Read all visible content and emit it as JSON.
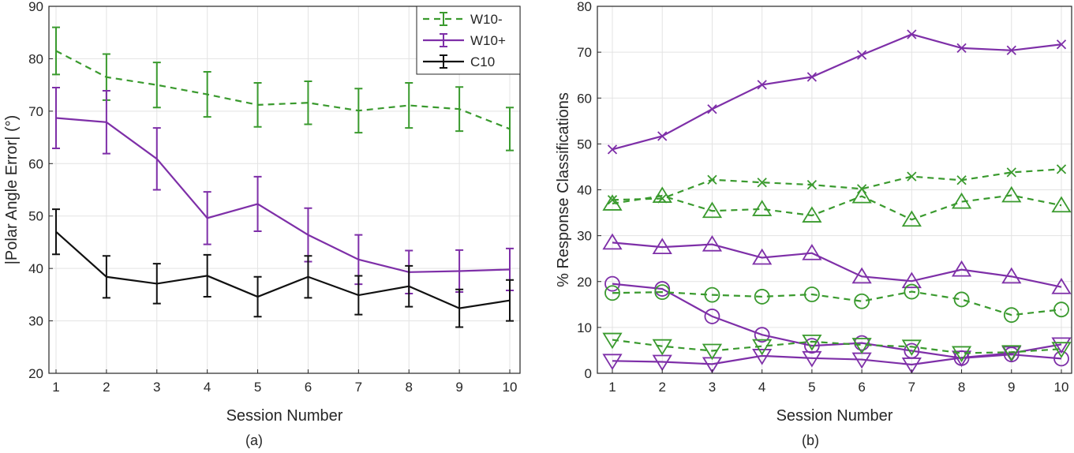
{
  "chart_data": [
    {
      "panel_label": "(a)",
      "type": "line",
      "xlabel": "Session Number",
      "ylabel": "|Polar Angle Error| (°)",
      "xlim": [
        1,
        10
      ],
      "ylim": [
        20,
        90
      ],
      "xticks": [
        1,
        2,
        3,
        4,
        5,
        6,
        7,
        8,
        9,
        10
      ],
      "yticks": [
        20,
        30,
        40,
        50,
        60,
        70,
        80,
        90
      ],
      "grid": true,
      "legend_position": "top-right",
      "x": [
        1,
        2,
        3,
        4,
        5,
        6,
        7,
        8,
        9,
        10
      ],
      "series": [
        {
          "name": "W10-",
          "color": "#3a9a2e",
          "dash": true,
          "values": [
            81.5,
            76.5,
            75,
            73.2,
            71.2,
            71.6,
            70.1,
            71.1,
            70.4,
            66.6
          ],
          "err": [
            4.5,
            4.4,
            4.3,
            4.3,
            4.2,
            4.1,
            4.2,
            4.3,
            4.2,
            4.1
          ]
        },
        {
          "name": "W10+",
          "color": "#7e2fa8",
          "dash": false,
          "values": [
            68.7,
            67.9,
            60.9,
            49.6,
            52.3,
            46.4,
            41.7,
            39.3,
            39.5,
            39.8
          ],
          "err": [
            5.8,
            6.0,
            5.9,
            5.0,
            5.2,
            5.1,
            4.7,
            4.1,
            4.0,
            4.0
          ]
        },
        {
          "name": "C10",
          "color": "#111111",
          "dash": false,
          "values": [
            47,
            38.4,
            37.1,
            38.6,
            34.6,
            38.4,
            34.9,
            36.6,
            32.4,
            33.9
          ],
          "err": [
            4.3,
            4.0,
            3.8,
            4.0,
            3.8,
            4.0,
            3.7,
            3.9,
            3.6,
            3.9
          ]
        }
      ]
    },
    {
      "panel_label": "(b)",
      "type": "line",
      "xlabel": "Session Number",
      "ylabel": "% Response Classifications",
      "xlim": [
        1,
        10
      ],
      "ylim": [
        0,
        80
      ],
      "xticks": [
        1,
        2,
        3,
        4,
        5,
        6,
        7,
        8,
        9,
        10
      ],
      "yticks": [
        0,
        10,
        20,
        30,
        40,
        50,
        60,
        70,
        80
      ],
      "grid": true,
      "x": [
        1,
        2,
        3,
        4,
        5,
        6,
        7,
        8,
        9,
        10
      ],
      "series": [
        {
          "marker": "x",
          "color": "#7e2fa8",
          "dash": false,
          "values": [
            48.8,
            51.7,
            57.6,
            62.9,
            64.6,
            69.4,
            73.9,
            70.9,
            70.4,
            71.7
          ]
        },
        {
          "marker": "triangle-up",
          "color": "#7e2fa8",
          "dash": false,
          "values": [
            28.5,
            27.5,
            28.1,
            25.2,
            26.2,
            21.1,
            20.1,
            22.6,
            21.1,
            18.8
          ]
        },
        {
          "marker": "circle",
          "color": "#7e2fa8",
          "dash": false,
          "values": [
            19.5,
            18.4,
            12.4,
            8.4,
            6,
            6.6,
            4.9,
            3.3,
            4.1,
            3.2
          ]
        },
        {
          "marker": "triangle-down",
          "color": "#7e2fa8",
          "dash": false,
          "values": [
            2.7,
            2.5,
            2,
            3.8,
            3.3,
            3,
            1.9,
            3.4,
            4.4,
            6.3
          ]
        },
        {
          "marker": "x",
          "color": "#3a9a2e",
          "dash": true,
          "values": [
            37.8,
            38.1,
            42.2,
            41.6,
            41.1,
            40.2,
            42.9,
            42.1,
            43.8,
            44.5
          ]
        },
        {
          "marker": "triangle-up",
          "color": "#3a9a2e",
          "dash": true,
          "values": [
            37,
            38.7,
            35.4,
            35.8,
            34.4,
            38.6,
            33.5,
            37.4,
            38.8,
            36.6
          ]
        },
        {
          "marker": "circle",
          "color": "#3a9a2e",
          "dash": true,
          "values": [
            17.5,
            17.7,
            17.1,
            16.7,
            17.2,
            15.7,
            17.8,
            16.1,
            12.7,
            13.9
          ]
        },
        {
          "marker": "triangle-down",
          "color": "#3a9a2e",
          "dash": true,
          "values": [
            7.3,
            5.9,
            4.9,
            5.9,
            6.9,
            6.2,
            5.8,
            4.4,
            4.6,
            5.3
          ]
        }
      ]
    }
  ]
}
